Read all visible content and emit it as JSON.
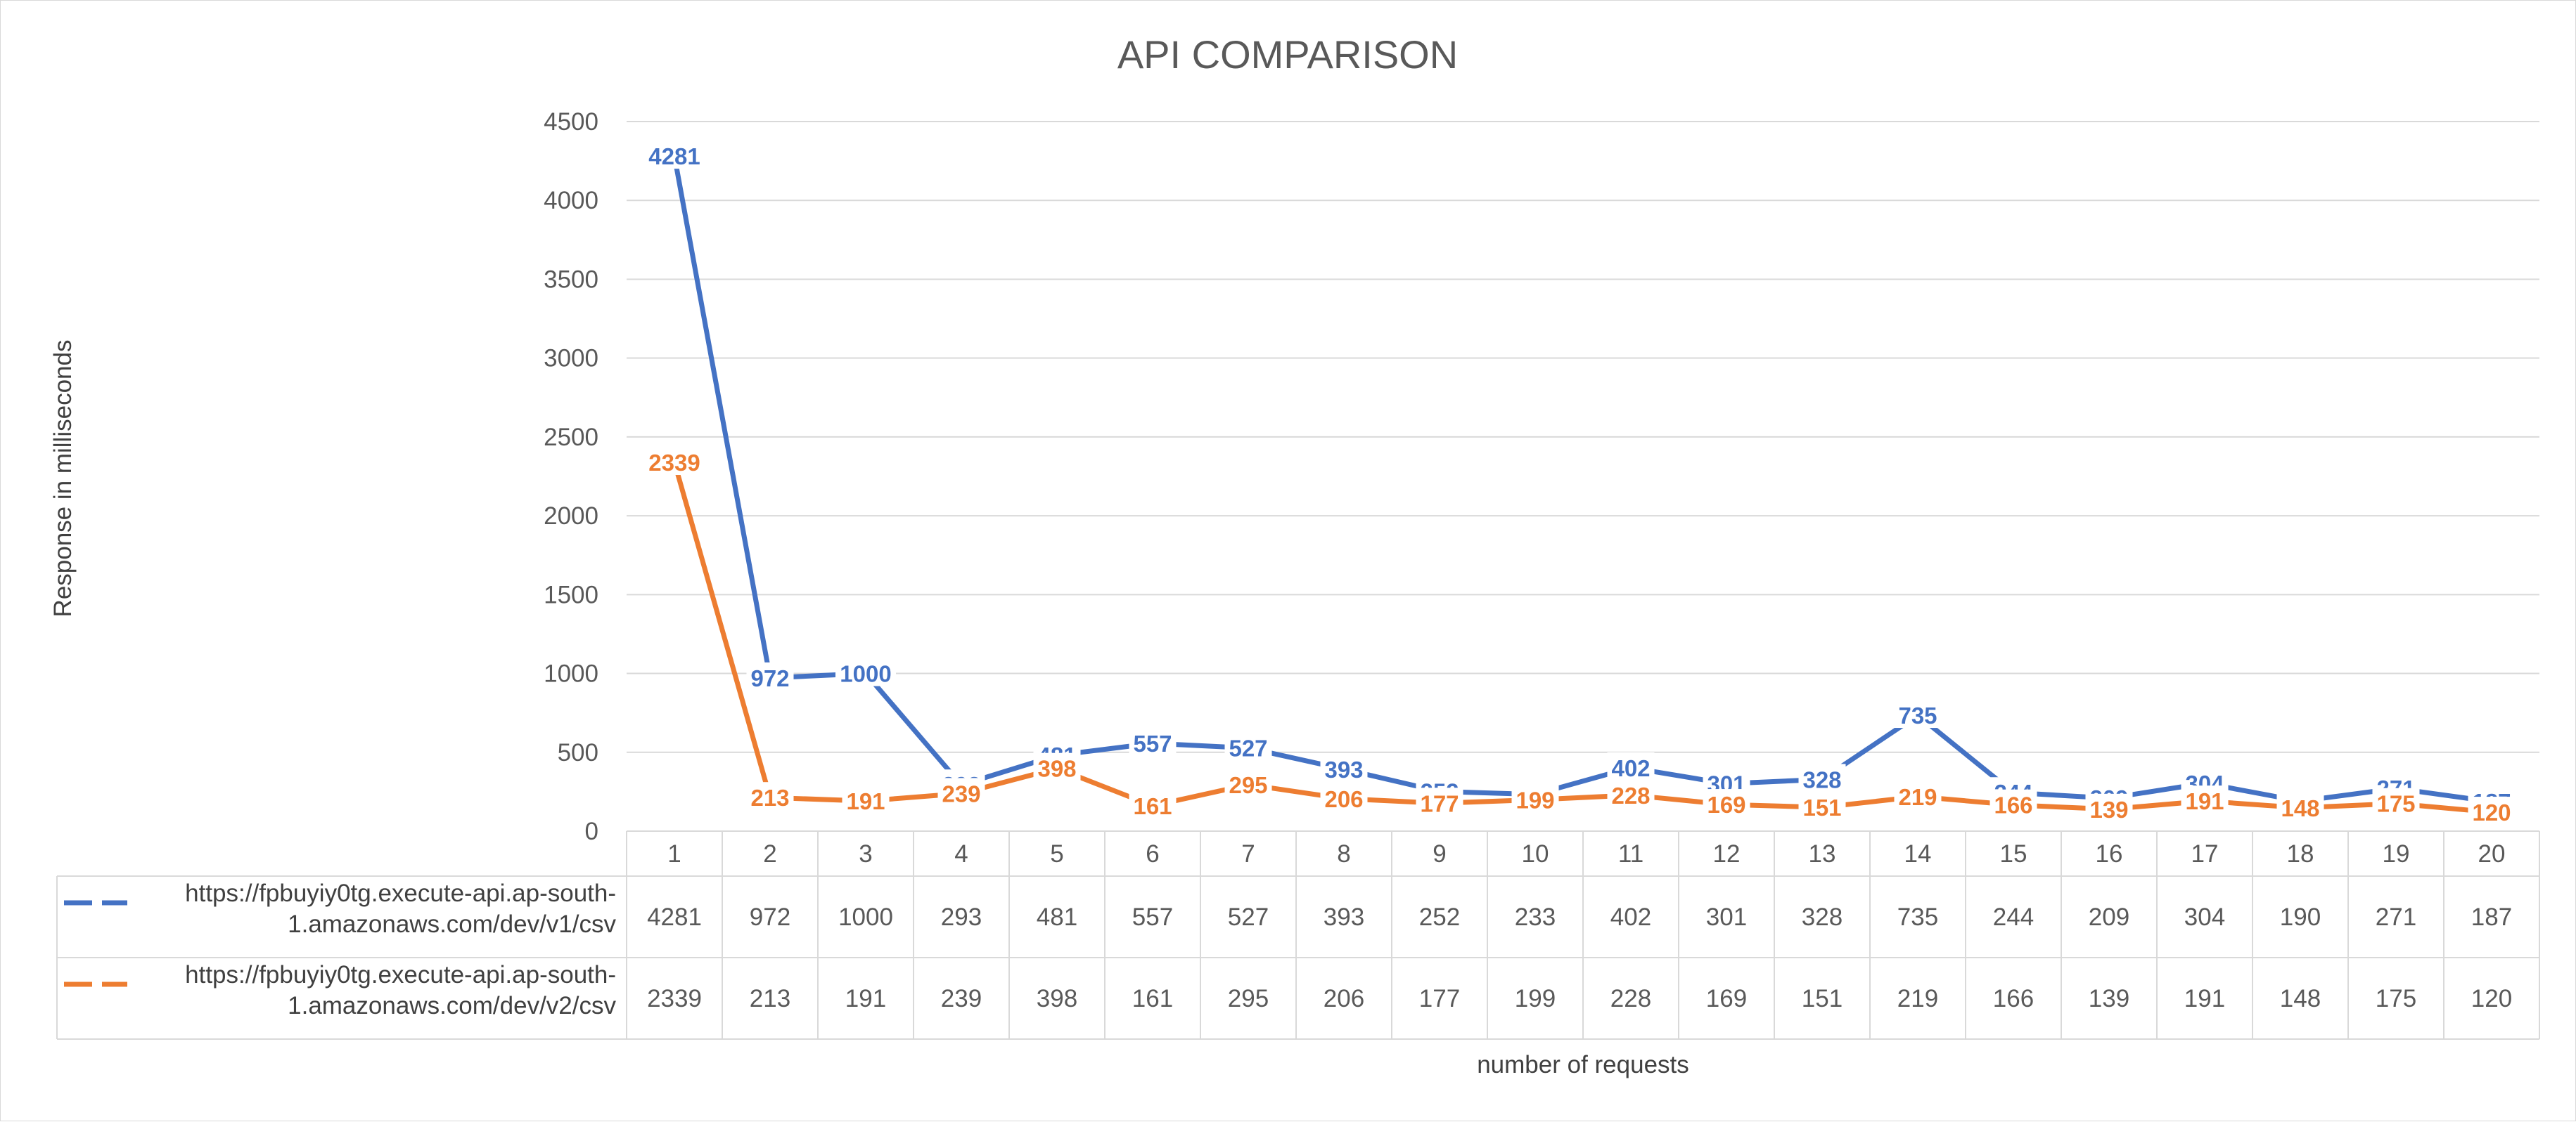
{
  "chart_data": {
    "type": "line",
    "title": "API COMPARISON",
    "xlabel": "number of requests",
    "ylabel": "Response in milliseconds",
    "ylim": [
      0,
      4500
    ],
    "yticks": [
      0,
      500,
      1000,
      1500,
      2000,
      2500,
      3000,
      3500,
      4000,
      4500
    ],
    "grid": true,
    "legend_placement": "data-table-bottom",
    "categories": [
      "1",
      "2",
      "3",
      "4",
      "5",
      "6",
      "7",
      "8",
      "9",
      "10",
      "11",
      "12",
      "13",
      "14",
      "15",
      "16",
      "17",
      "18",
      "19",
      "20"
    ],
    "series": [
      {
        "name": "https://fpbuyiy0tg.execute-api.ap-south-1.amazonaws.com/dev/v1/csv",
        "name_lines": [
          "https://fpbuyiy0tg.execute-api.ap-south-",
          "1.amazonaws.com/dev/v1/csv"
        ],
        "color": "#4472c4",
        "values": [
          4281,
          972,
          1000,
          293,
          481,
          557,
          527,
          393,
          252,
          233,
          402,
          301,
          328,
          735,
          244,
          209,
          304,
          190,
          271,
          187
        ]
      },
      {
        "name": "https://fpbuyiy0tg.execute-api.ap-south-1.amazonaws.com/dev/v2/csv",
        "name_lines": [
          "https://fpbuyiy0tg.execute-api.ap-south-",
          "1.amazonaws.com/dev/v2/csv"
        ],
        "color": "#ed7d31",
        "values": [
          2339,
          213,
          191,
          239,
          398,
          161,
          295,
          206,
          177,
          199,
          228,
          169,
          151,
          219,
          166,
          139,
          191,
          148,
          175,
          120
        ]
      }
    ]
  }
}
